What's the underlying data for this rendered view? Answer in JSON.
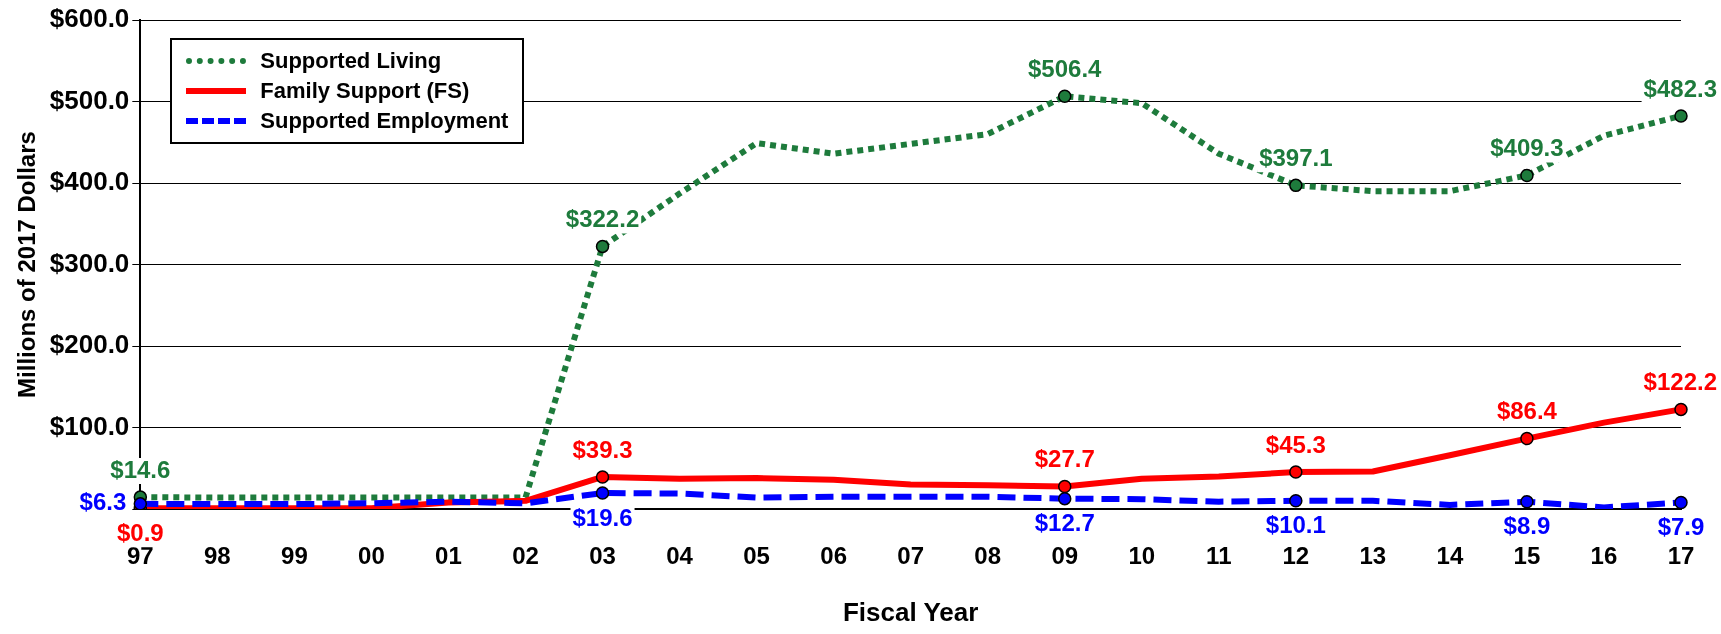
{
  "chart_data": {
    "type": "line",
    "xlabel": "Fiscal Year",
    "ylabel": "Millions of 2017 Dollars",
    "categories": [
      "97",
      "98",
      "99",
      "00",
      "01",
      "02",
      "03",
      "04",
      "05",
      "06",
      "07",
      "08",
      "09",
      "10",
      "11",
      "12",
      "13",
      "14",
      "15",
      "16",
      "17"
    ],
    "ylim": [
      0,
      600
    ],
    "yticks": [
      {
        "value": 0,
        "label": null
      },
      {
        "value": 100,
        "label": "$100.0"
      },
      {
        "value": 200,
        "label": "$200.0"
      },
      {
        "value": 300,
        "label": "$300.0"
      },
      {
        "value": 400,
        "label": "$400.0"
      },
      {
        "value": 500,
        "label": "$500.0"
      },
      {
        "value": 600,
        "label": "$600.0"
      }
    ],
    "grid": "y",
    "legend": "top left",
    "series": [
      {
        "name": "Supported Living",
        "color": "#1e7b3c",
        "line_style": "dotted",
        "values": [
          14.6,
          14,
          14,
          14,
          14,
          14,
          322.2,
          387,
          449,
          436,
          448,
          460,
          506.4,
          498,
          436,
          397.1,
          390,
          390,
          409.3,
          458,
          482.3
        ],
        "value_labels": [
          "$14.6",
          null,
          null,
          null,
          null,
          null,
          "$322.2",
          null,
          null,
          null,
          null,
          null,
          "$506.4",
          null,
          null,
          "$397.1",
          null,
          null,
          "$409.3",
          null,
          "$482.3"
        ]
      },
      {
        "name": "Family Support (FS)",
        "color": "#ff0000",
        "line_style": "solid",
        "values": [
          0.9,
          1,
          1,
          1,
          8,
          10,
          39.3,
          37,
          38,
          36,
          30,
          29,
          27.7,
          37,
          40,
          45.3,
          46,
          66,
          86.4,
          106,
          122.2
        ],
        "value_labels": [
          "$0.9",
          null,
          null,
          null,
          null,
          null,
          "$39.3",
          null,
          null,
          null,
          null,
          null,
          "$27.7",
          null,
          null,
          "$45.3",
          null,
          null,
          "$86.4",
          null,
          "$122.2"
        ]
      },
      {
        "name": "Supported Employment",
        "color": "#0000ff",
        "line_style": "dashed",
        "values": [
          6.3,
          6,
          6,
          7,
          9,
          7,
          19.6,
          19,
          14,
          15,
          15,
          15,
          12.7,
          12,
          9,
          10.1,
          10,
          5,
          8.9,
          2,
          7.9
        ],
        "value_labels": [
          "$6.3",
          null,
          null,
          null,
          null,
          null,
          "$19.6",
          null,
          null,
          null,
          null,
          null,
          "$12.7",
          null,
          null,
          "$10.1",
          null,
          null,
          "$8.9",
          null,
          "$7.9"
        ]
      }
    ]
  }
}
